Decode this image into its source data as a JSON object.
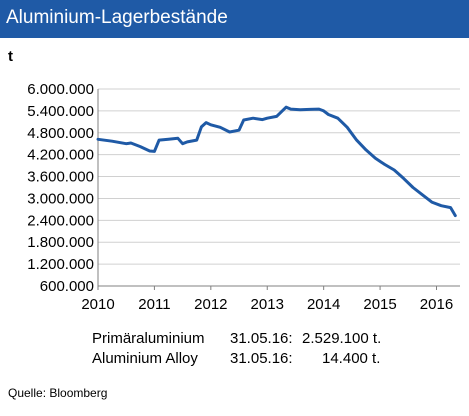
{
  "header": {
    "title": "Aluminium-Lagerbestände",
    "bar_color": "#1f5aa6"
  },
  "chart_data": {
    "type": "line",
    "title": "Aluminium-Lagerbestände",
    "ylabel": "t",
    "xlabel": "",
    "ylim": [
      600000,
      6000000
    ],
    "y_ticks": [
      600000,
      1200000,
      1800000,
      2400000,
      3000000,
      3600000,
      4200000,
      4800000,
      5400000,
      6000000
    ],
    "y_tick_labels": [
      "600.000",
      "1.200.000",
      "1.800.000",
      "2.400.000",
      "3.000.000",
      "3.600.000",
      "4.200.000",
      "4.800.000",
      "5.400.000",
      "6.000.000"
    ],
    "xlim": [
      "2010-01",
      "2016-06"
    ],
    "x_ticks": [
      "2010",
      "2011",
      "2012",
      "2013",
      "2014",
      "2015",
      "2016"
    ],
    "grid": "horizontal",
    "line_color": "#1f5aa6",
    "series": [
      {
        "x": [
          "2010-01",
          "2010-04",
          "2010-07",
          "2010-08",
          "2010-10",
          "2010-12",
          "2011-01",
          "2011-02",
          "2011-04",
          "2011-06",
          "2011-07",
          "2011-08",
          "2011-10",
          "2011-11",
          "2011-12",
          "2012-01",
          "2012-03",
          "2012-05",
          "2012-07",
          "2012-08",
          "2012-10",
          "2012-12",
          "2013-01",
          "2013-03",
          "2013-05",
          "2013-06",
          "2013-08",
          "2013-10",
          "2013-12",
          "2014-01",
          "2014-02",
          "2014-04",
          "2014-06",
          "2014-08",
          "2014-10",
          "2014-12",
          "2015-02",
          "2015-04",
          "2015-06",
          "2015-08",
          "2015-10",
          "2015-12",
          "2016-02",
          "2016-04",
          "2016-05"
        ],
        "y": [
          4620000,
          4570000,
          4500000,
          4520000,
          4420000,
          4300000,
          4290000,
          4600000,
          4620000,
          4650000,
          4500000,
          4550000,
          4600000,
          4960000,
          5080000,
          5020000,
          4950000,
          4820000,
          4870000,
          5150000,
          5200000,
          5160000,
          5200000,
          5250000,
          5500000,
          5450000,
          5430000,
          5440000,
          5450000,
          5400000,
          5300000,
          5200000,
          4950000,
          4600000,
          4330000,
          4100000,
          3930000,
          3780000,
          3550000,
          3300000,
          3100000,
          2900000,
          2800000,
          2750000,
          2529100
        ]
      }
    ],
    "annotations": [
      {
        "label": "Primäraluminium",
        "date": "31.05.16:",
        "value": "2.529.100 t."
      },
      {
        "label": "Aluminium Alloy",
        "date": "31.05.16:",
        "value": "14.400 t."
      }
    ]
  },
  "footer": {
    "source": "Quelle: Bloomberg"
  }
}
